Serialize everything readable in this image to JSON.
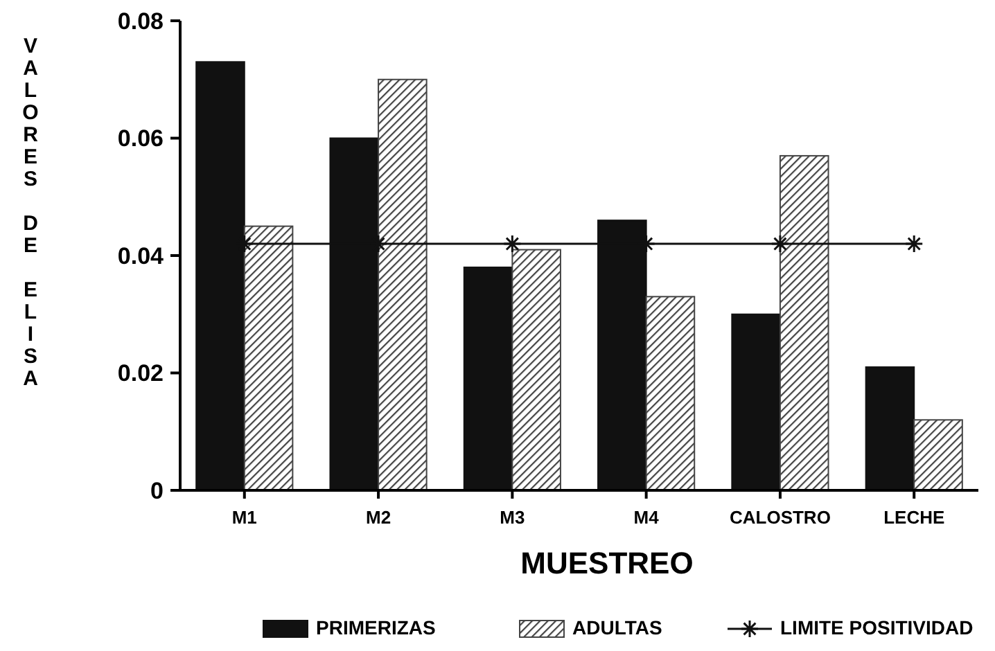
{
  "chart_data": {
    "type": "bar",
    "xlabel": "MUESTREO",
    "ylabel": "VALORES DE ELISA",
    "categories": [
      "M1",
      "M2",
      "M3",
      "M4",
      "CALOSTRO",
      "LECHE"
    ],
    "series": [
      {
        "name": "PRIMERIZAS",
        "color": "#111111",
        "values": [
          0.073,
          0.06,
          0.038,
          0.046,
          0.03,
          0.021
        ]
      },
      {
        "name": "ADULTAS",
        "color": "#444444",
        "values": [
          0.045,
          0.07,
          0.041,
          0.033,
          0.057,
          0.012
        ]
      },
      {
        "name": "LIMITE POSITIVIDAD",
        "type": "line",
        "color": "#111111",
        "marker": "cross",
        "values": [
          0.042,
          0.042,
          0.042,
          0.042,
          0.042,
          0.042
        ]
      }
    ],
    "ylim": [
      0,
      0.08
    ],
    "yticks": [
      0,
      0.02,
      0.04,
      0.06,
      0.08
    ],
    "grid": false,
    "legend": "bottom"
  }
}
